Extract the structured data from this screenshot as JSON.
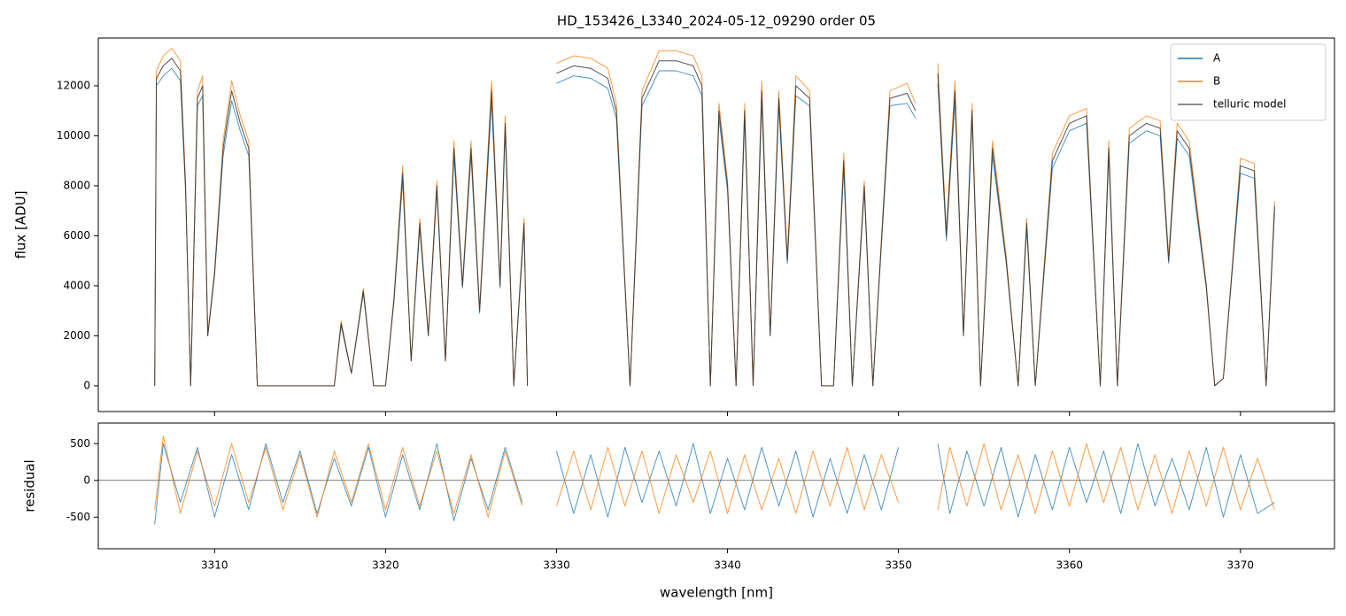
{
  "chart_data": [
    {
      "type": "line",
      "title": "HD_153426_L3340_2024-05-12_09290  order 05",
      "ylabel": "flux [ADU]",
      "xlim": [
        3303.2,
        3375.5
      ],
      "ylim": [
        -1030,
        13910
      ],
      "yticks": [
        0,
        2000,
        4000,
        6000,
        8000,
        10000,
        12000
      ],
      "legend": "upper right",
      "x": [
        3306.5,
        3306.6,
        3307,
        3307.5,
        3308,
        3308.3,
        3308.6,
        3309,
        3309.3,
        3309.6,
        3310,
        3310.5,
        3311,
        3311.5,
        3312,
        3312.5,
        3313,
        3314,
        3315,
        3316,
        3317,
        3317.4,
        3318,
        3318.7,
        3319.3,
        3320,
        3320.5,
        3321,
        3321.5,
        3322,
        3322.5,
        3323,
        3323.5,
        3324,
        3324.5,
        3325,
        3325.5,
        3326.2,
        3326.7,
        3327,
        3327.5,
        3328.1,
        3328.3,
        3329,
        3330,
        3331,
        3332,
        3333,
        3333.5,
        3334.3,
        3335,
        3336,
        3337,
        3338,
        3338.5,
        3339,
        3339.5,
        3340,
        3340.5,
        3341,
        3341.5,
        3342,
        3342.5,
        3343,
        3343.5,
        3344,
        3344.8,
        3345.5,
        3346.2,
        3346.8,
        3347.3,
        3348,
        3348.5,
        3349.5,
        3350.5,
        3351,
        3351.5,
        3352.3,
        3352.8,
        3353.3,
        3353.8,
        3354.3,
        3354.8,
        3355.5,
        3356.3,
        3357,
        3357.5,
        3358,
        3359,
        3360,
        3361,
        3361.8,
        3362.3,
        3362.8,
        3363.5,
        3364.5,
        3365.3,
        3365.8,
        3366.3,
        3367,
        3368,
        3368.5,
        3369,
        3369.5,
        3370,
        3370.8,
        3371.5,
        3372
      ],
      "series": [
        {
          "name": "A",
          "color": "#1f77b4",
          "values": [
            0,
            12000,
            12400,
            12700,
            12200,
            7800,
            0,
            11200,
            11600,
            2000,
            4400,
            9200,
            11400,
            10200,
            9200,
            0,
            0,
            0,
            0,
            0,
            0,
            2400,
            500,
            3700,
            0,
            0,
            3400,
            8200,
            1000,
            6300,
            2000,
            7800,
            1000,
            9200,
            3900,
            9200,
            2900,
            11400,
            3900,
            10200,
            0,
            6300,
            0,
            null,
            12100,
            12400,
            12300,
            11900,
            10700,
            0,
            11200,
            12600,
            12600,
            12400,
            11600,
            0,
            10700,
            7800,
            0,
            10700,
            0,
            11400,
            2000,
            11200,
            4900,
            11600,
            11200,
            0,
            0,
            8700,
            0,
            7800,
            0,
            11200,
            11300,
            10700,
            null,
            12100,
            5800,
            11400,
            2000,
            10700,
            0,
            9200,
            4900,
            0,
            6300,
            0,
            8700,
            10200,
            10500,
            0,
            9200,
            0,
            9700,
            10200,
            10000,
            4900,
            9900,
            9200,
            3900,
            0,
            300,
            4400,
            8500,
            8300,
            0,
            7000
          ]
        },
        {
          "name": "B",
          "color": "#ff7f0e",
          "values": [
            0,
            12600,
            13200,
            13500,
            13000,
            8200,
            0,
            11800,
            12400,
            2100,
            4600,
            9800,
            12200,
            10800,
            9800,
            0,
            0,
            0,
            0,
            0,
            0,
            2600,
            500,
            3900,
            0,
            0,
            3600,
            8800,
            1000,
            6700,
            2100,
            8200,
            1000,
            9800,
            4100,
            9800,
            3100,
            12200,
            4100,
            10800,
            0,
            6700,
            0,
            null,
            12900,
            13200,
            13100,
            12700,
            11300,
            0,
            11800,
            13400,
            13400,
            13200,
            12400,
            0,
            11300,
            8200,
            0,
            11300,
            0,
            12200,
            2100,
            11800,
            5200,
            12400,
            11800,
            0,
            0,
            9300,
            0,
            8200,
            0,
            11800,
            12100,
            11300,
            null,
            12900,
            6200,
            12200,
            2100,
            11300,
            0,
            9800,
            5200,
            0,
            6700,
            0,
            9300,
            10800,
            11100,
            0,
            9800,
            0,
            10300,
            10800,
            10600,
            5200,
            10500,
            9800,
            4100,
            0,
            300,
            4600,
            9100,
            8900,
            0,
            7400
          ]
        },
        {
          "name": "telluric model",
          "color": "#333333",
          "values": [
            0,
            12300,
            12800,
            13100,
            12600,
            8000,
            0,
            11500,
            12000,
            2000,
            4500,
            9500,
            11800,
            10500,
            9500,
            0,
            0,
            0,
            0,
            0,
            0,
            2500,
            500,
            3800,
            0,
            0,
            3500,
            8500,
            1000,
            6500,
            2000,
            8000,
            1000,
            9500,
            4000,
            9500,
            3000,
            11800,
            4000,
            10500,
            0,
            6500,
            0,
            null,
            12500,
            12800,
            12700,
            12300,
            11000,
            0,
            11500,
            13000,
            13000,
            12800,
            12000,
            0,
            11000,
            8000,
            0,
            11000,
            0,
            11800,
            2000,
            11500,
            5000,
            12000,
            11500,
            0,
            0,
            9000,
            0,
            8000,
            0,
            11500,
            11700,
            11000,
            null,
            12500,
            6000,
            11800,
            2000,
            11000,
            0,
            9500,
            5000,
            0,
            6500,
            0,
            9000,
            10500,
            10800,
            0,
            9500,
            0,
            10000,
            10500,
            10300,
            5000,
            10200,
            9500,
            4000,
            0,
            300,
            4500,
            8800,
            8600,
            0,
            7200
          ]
        }
      ]
    },
    {
      "type": "line",
      "xlabel": "wavelength [nm]",
      "ylabel": "residual",
      "xlim": [
        3303.2,
        3375.5
      ],
      "ylim": [
        -930,
        780
      ],
      "xticks": [
        3310,
        3320,
        3330,
        3340,
        3350,
        3360,
        3370
      ],
      "yticks": [
        -500,
        0,
        500
      ],
      "hline": 0,
      "x": [
        3306.5,
        3307,
        3308,
        3309,
        3310,
        3311,
        3312,
        3313,
        3314,
        3315,
        3316,
        3317,
        3318,
        3319,
        3320,
        3321,
        3322,
        3323,
        3324,
        3325,
        3326,
        3327,
        3328,
        3329,
        3330,
        3331,
        3332,
        3333,
        3334,
        3335,
        3336,
        3337,
        3338,
        3339,
        3340,
        3341,
        3342,
        3343,
        3344,
        3345,
        3346,
        3347,
        3348,
        3349,
        3350,
        3351.5,
        3352.3,
        3353,
        3354,
        3355,
        3356,
        3357,
        3358,
        3359,
        3360,
        3361,
        3362,
        3363,
        3364,
        3365,
        3366,
        3367,
        3368,
        3369,
        3370,
        3371,
        3372
      ],
      "series": [
        {
          "name": "A",
          "color": "#1f77b4",
          "values": [
            -600,
            500,
            -300,
            450,
            -500,
            350,
            -400,
            500,
            -300,
            400,
            -450,
            300,
            -350,
            450,
            -500,
            350,
            -400,
            500,
            -550,
            300,
            -400,
            450,
            -300,
            null,
            400,
            -450,
            350,
            -500,
            450,
            -300,
            400,
            -350,
            500,
            -450,
            300,
            -400,
            450,
            -350,
            400,
            -500,
            300,
            -450,
            350,
            -400,
            450,
            null,
            500,
            -450,
            400,
            -350,
            450,
            -500,
            350,
            -400,
            450,
            -300,
            400,
            -450,
            500,
            -350,
            300,
            -400,
            450,
            -500,
            350,
            -450,
            -300
          ]
        },
        {
          "name": "B",
          "color": "#ff7f0e",
          "values": [
            -400,
            600,
            -450,
            400,
            -350,
            500,
            -300,
            450,
            -400,
            350,
            -500,
            400,
            -300,
            500,
            -400,
            450,
            -350,
            400,
            -450,
            350,
            -500,
            400,
            -350,
            null,
            -350,
            400,
            -400,
            450,
            -350,
            400,
            -450,
            350,
            -300,
            400,
            -450,
            350,
            -400,
            300,
            -450,
            400,
            -350,
            450,
            -400,
            350,
            -300,
            null,
            -400,
            450,
            -350,
            500,
            -400,
            350,
            -450,
            400,
            -350,
            500,
            -300,
            450,
            -400,
            350,
            -450,
            400,
            -350,
            450,
            -400,
            300,
            -400
          ]
        }
      ]
    }
  ]
}
